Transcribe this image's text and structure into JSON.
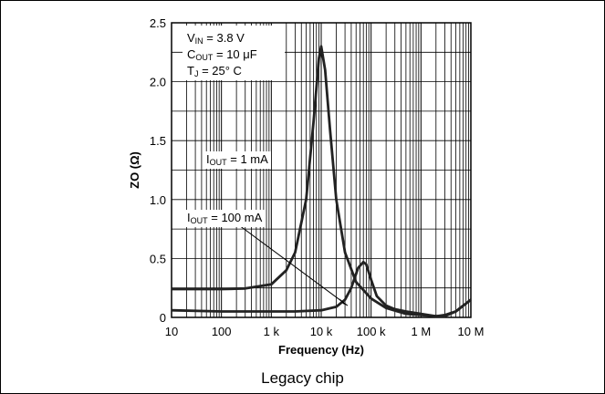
{
  "chart_data": {
    "type": "line",
    "title": "",
    "xlabel": "Frequency (Hz)",
    "ylabel": "ZO (Ω)",
    "x_scale": "log",
    "xlim": [
      10,
      10000000
    ],
    "ylim": [
      0,
      2.5
    ],
    "grid": true,
    "x_ticks": [
      {
        "value": 10,
        "label": "10"
      },
      {
        "value": 100,
        "label": "100"
      },
      {
        "value": 1000,
        "label": "1 k"
      },
      {
        "value": 10000,
        "label": "10 k"
      },
      {
        "value": 100000,
        "label": "100 k"
      },
      {
        "value": 1000000,
        "label": "1 M"
      },
      {
        "value": 10000000,
        "label": "10 M"
      }
    ],
    "y_ticks": [
      {
        "value": 0,
        "label": "0"
      },
      {
        "value": 0.5,
        "label": "0.5"
      },
      {
        "value": 1.0,
        "label": "1.0"
      },
      {
        "value": 1.5,
        "label": "1.5"
      },
      {
        "value": 2.0,
        "label": "2.0"
      },
      {
        "value": 2.5,
        "label": "2.5"
      }
    ],
    "series": [
      {
        "name_main": "I",
        "name_sub": "OUT",
        "name_rest": " = 1 mA",
        "x": [
          10,
          100,
          300,
          1000,
          2000,
          3000,
          5000,
          7000,
          9000,
          10000,
          12000,
          15000,
          20000,
          30000,
          50000,
          100000,
          200000,
          500000,
          1000000,
          2000000,
          3000000,
          5000000,
          10000000
        ],
        "y": [
          0.24,
          0.24,
          0.245,
          0.28,
          0.4,
          0.55,
          1.0,
          1.65,
          2.2,
          2.3,
          2.1,
          1.6,
          1.0,
          0.55,
          0.3,
          0.16,
          0.08,
          0.03,
          0.02,
          0.01,
          0.02,
          0.05,
          0.15
        ]
      },
      {
        "name_main": "I",
        "name_sub": "OUT",
        "name_rest": " = 100 mA",
        "x": [
          10,
          100,
          1000,
          3000,
          10000,
          20000,
          30000,
          40000,
          55000,
          70000,
          80000,
          100000,
          130000,
          200000,
          300000,
          500000,
          1000000,
          2000000,
          3000000,
          5000000,
          10000000
        ],
        "y": [
          0.06,
          0.05,
          0.05,
          0.05,
          0.06,
          0.09,
          0.15,
          0.25,
          0.42,
          0.47,
          0.45,
          0.32,
          0.18,
          0.1,
          0.07,
          0.05,
          0.03,
          0.01,
          0.01,
          0.05,
          0.15
        ]
      }
    ],
    "conditions": [
      {
        "main": "V",
        "sub": "IN",
        "rest": " = 3.8 V"
      },
      {
        "main": "C",
        "sub": "OUT",
        "rest": " = 10 μF"
      },
      {
        "main": "T",
        "sub": "J",
        "rest": " = 25° C"
      }
    ]
  },
  "caption": "Legacy chip"
}
